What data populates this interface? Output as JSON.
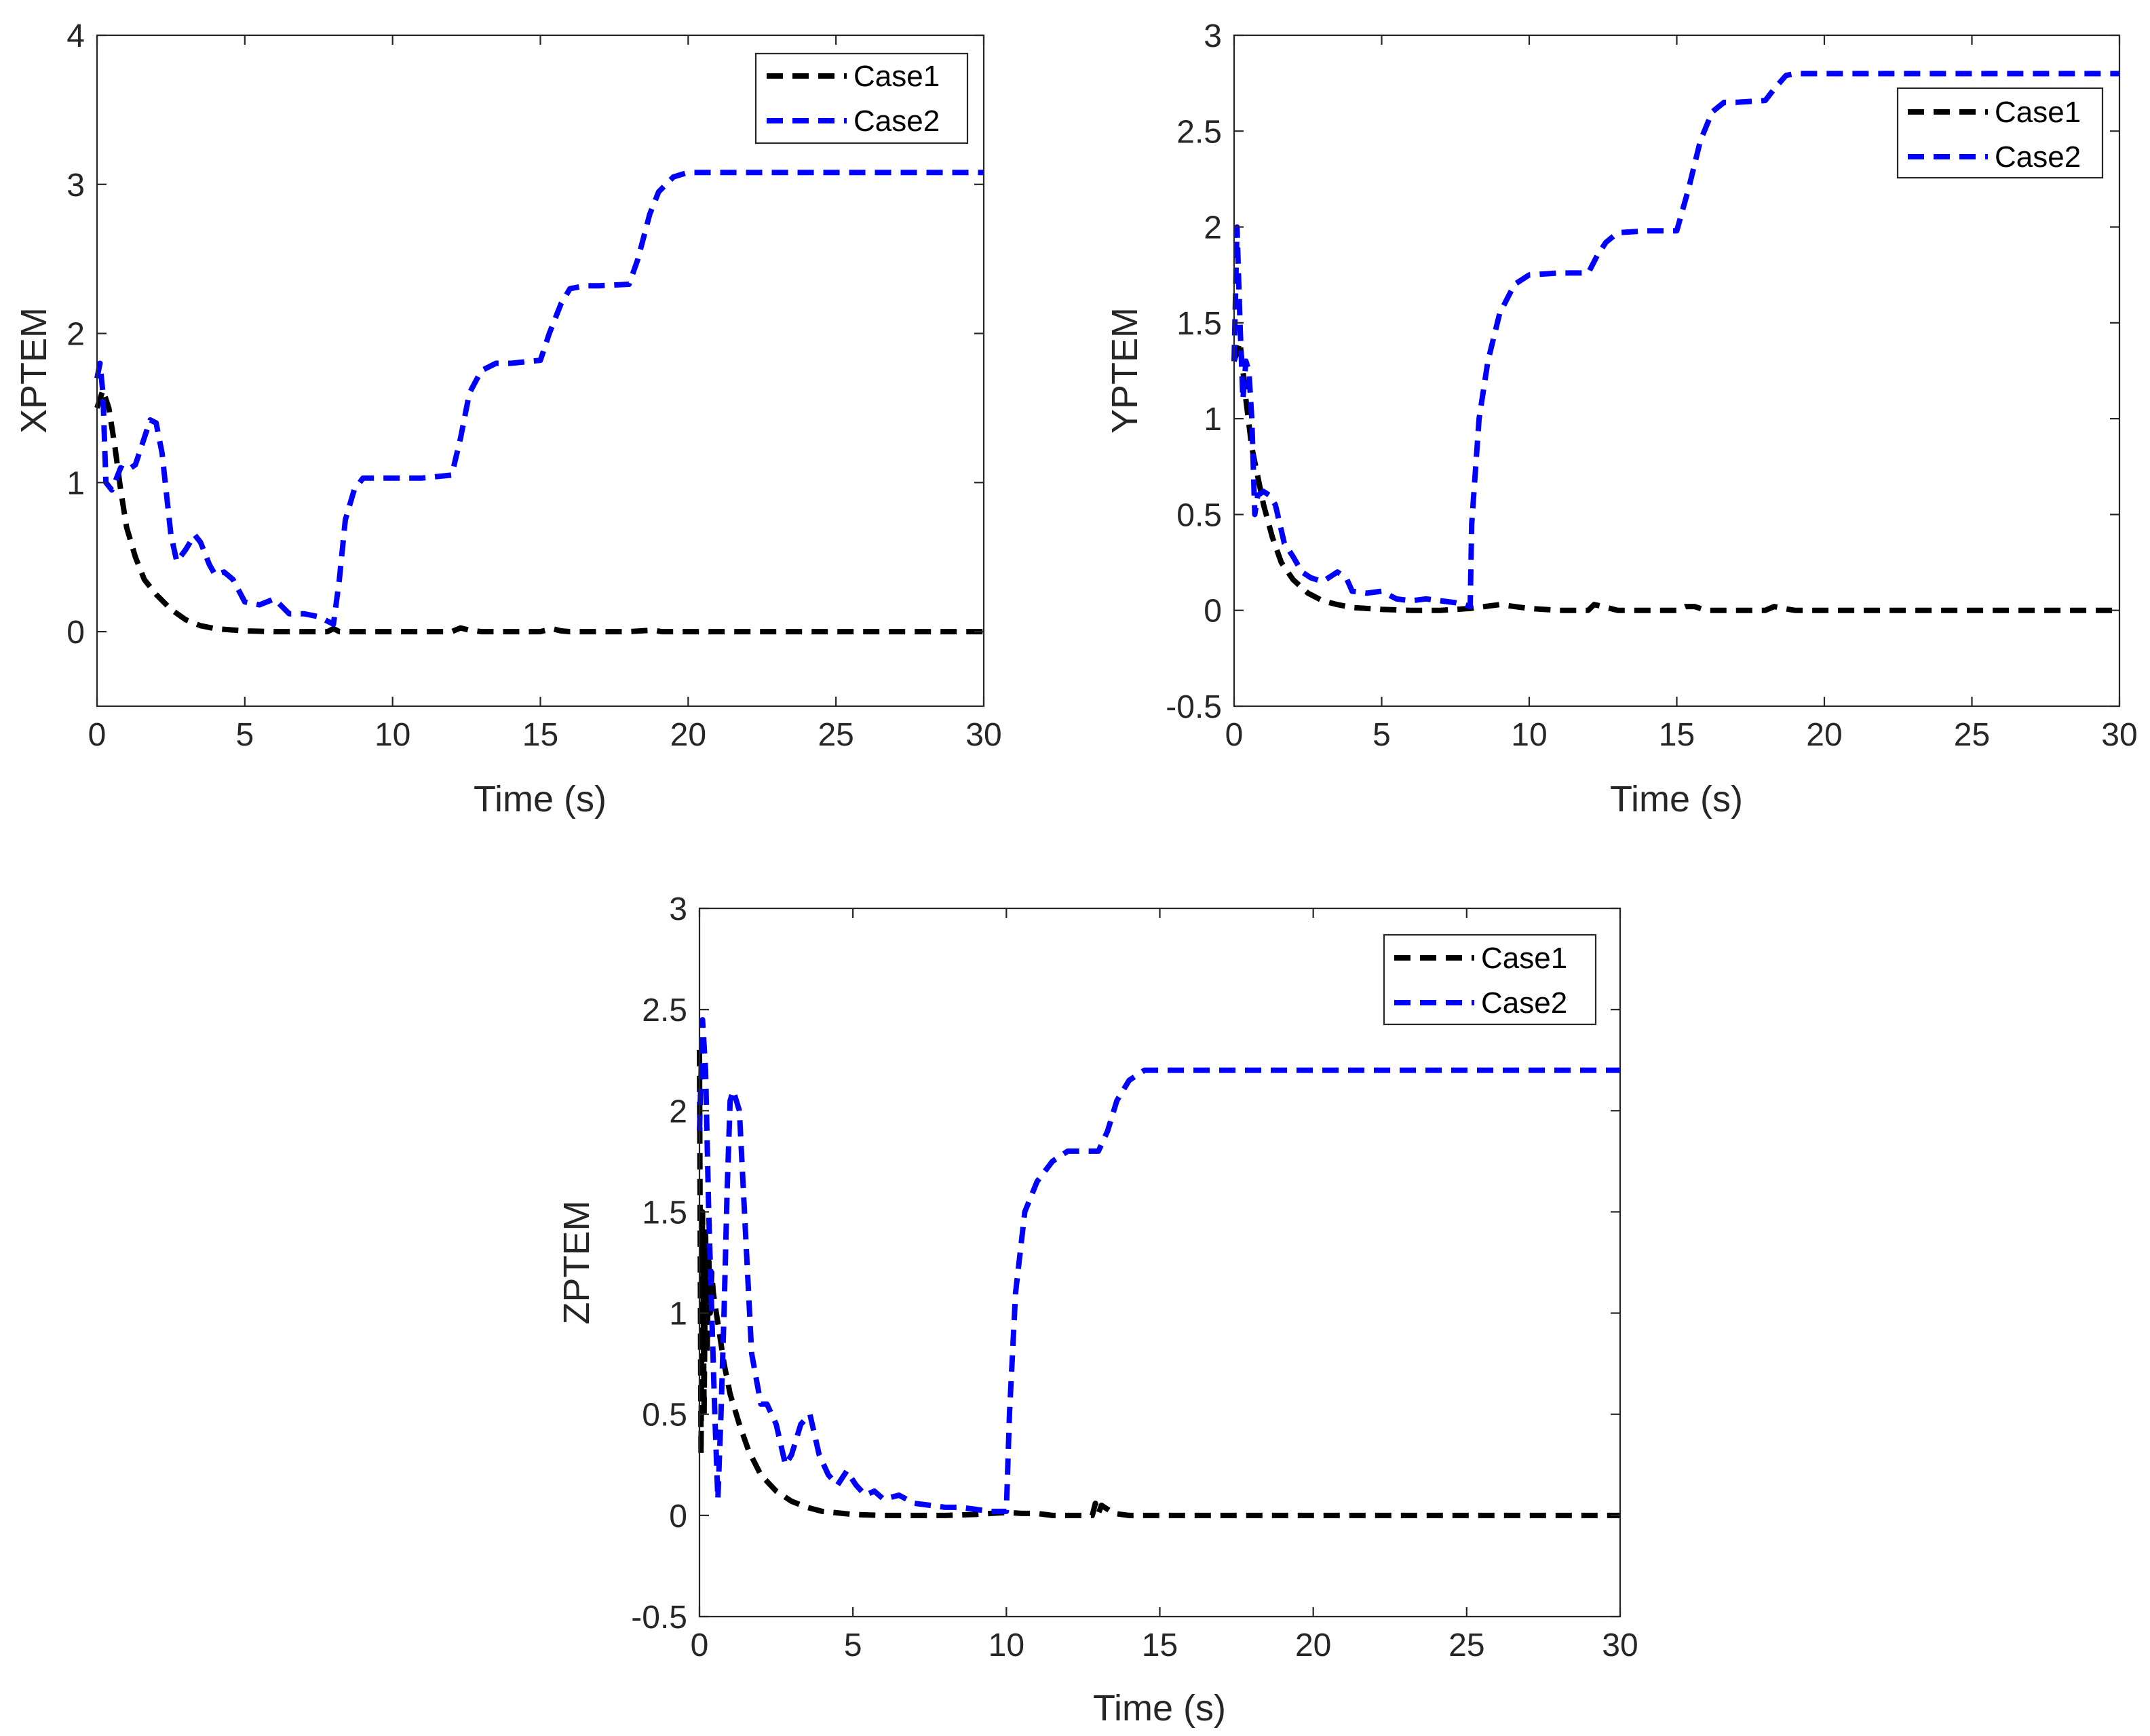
{
  "colors": {
    "case1": "#000000",
    "case2": "#0000ff",
    "axis": "#262626"
  },
  "chart_data": [
    {
      "type": "line",
      "id": "xptem",
      "title": "",
      "xlabel": "Time (s)",
      "ylabel": "XPTEM",
      "xlim": [
        0,
        30
      ],
      "ylim": [
        -0.5,
        4
      ],
      "xticks": [
        0,
        5,
        10,
        15,
        20,
        25,
        30
      ],
      "yticks": [
        0,
        1,
        2,
        3,
        4
      ],
      "legend_position": "top-right",
      "legend": [
        "Case1",
        "Case2"
      ],
      "series": [
        {
          "name": "Case1",
          "color": "#000000",
          "x": [
            0,
            0.2,
            0.4,
            0.6,
            0.8,
            1,
            1.3,
            1.6,
            2,
            2.5,
            3,
            3.5,
            4,
            5,
            6,
            7,
            7.8,
            8,
            8.2,
            9,
            10,
            11,
            12,
            12.3,
            12.6,
            13,
            14,
            15,
            15.4,
            15.7,
            16,
            17,
            18,
            18.8,
            19.1,
            20,
            22,
            25,
            30
          ],
          "values": [
            1.5,
            1.62,
            1.5,
            1.25,
            0.95,
            0.7,
            0.5,
            0.35,
            0.25,
            0.15,
            0.08,
            0.04,
            0.02,
            0.005,
            0,
            0,
            0,
            0.02,
            0,
            0,
            0,
            0,
            0,
            0.025,
            0.01,
            0,
            0,
            0,
            0.02,
            0.005,
            0,
            0,
            0,
            0.01,
            0,
            0,
            0,
            0,
            0
          ]
        },
        {
          "name": "Case2",
          "color": "#0000ff",
          "x": [
            0,
            0.1,
            0.2,
            0.3,
            0.5,
            0.8,
            1,
            1.3,
            1.6,
            1.8,
            2,
            2.2,
            2.5,
            2.7,
            3,
            3.3,
            3.5,
            3.8,
            4,
            4.3,
            4.6,
            5,
            5.5,
            6,
            6.5,
            7,
            7.5,
            7.8,
            8,
            8.2,
            8.4,
            8.7,
            9,
            10,
            11,
            12,
            12.3,
            12.6,
            13,
            13.5,
            14,
            15,
            15.3,
            15.7,
            16,
            16.5,
            17,
            18,
            18.3,
            18.7,
            19,
            19.5,
            20,
            21,
            25,
            30
          ],
          "values": [
            1.7,
            1.8,
            1.6,
            1.0,
            0.95,
            1.1,
            1.08,
            1.12,
            1.3,
            1.42,
            1.4,
            1.2,
            0.65,
            0.47,
            0.55,
            0.65,
            0.6,
            0.45,
            0.38,
            0.4,
            0.35,
            0.2,
            0.18,
            0.22,
            0.12,
            0.12,
            0.1,
            0.07,
            0.05,
            0.35,
            0.75,
            0.95,
            1.03,
            1.03,
            1.03,
            1.05,
            1.3,
            1.6,
            1.75,
            1.8,
            1.8,
            1.82,
            2.0,
            2.2,
            2.3,
            2.32,
            2.32,
            2.33,
            2.5,
            2.8,
            2.95,
            3.05,
            3.08,
            3.08,
            3.08,
            3.08
          ]
        }
      ]
    },
    {
      "type": "line",
      "id": "yptem",
      "title": "",
      "xlabel": "Time (s)",
      "ylabel": "YPTEM",
      "xlim": [
        0,
        30
      ],
      "ylim": [
        -0.5,
        3
      ],
      "xticks": [
        0,
        5,
        10,
        15,
        20,
        25,
        30
      ],
      "yticks": [
        -0.5,
        0,
        0.5,
        1,
        1.5,
        2,
        2.5,
        3
      ],
      "legend_position": "top-right",
      "legend": [
        "Case1",
        "Case2"
      ],
      "series": [
        {
          "name": "Case1",
          "color": "#000000",
          "x": [
            0,
            0.2,
            0.4,
            0.6,
            0.8,
            1,
            1.3,
            1.6,
            2,
            2.5,
            3,
            3.5,
            4,
            5,
            6,
            7,
            8,
            9,
            10,
            11,
            12,
            12.2,
            12.5,
            13,
            14,
            15,
            15.3,
            15.6,
            16,
            17,
            18,
            18.3,
            18.6,
            19,
            20,
            25,
            30
          ],
          "values": [
            1.3,
            1.4,
            1.1,
            0.85,
            0.7,
            0.55,
            0.38,
            0.25,
            0.16,
            0.09,
            0.05,
            0.03,
            0.015,
            0.005,
            0,
            0,
            0.01,
            0.03,
            0.01,
            0,
            0,
            0.03,
            0.02,
            0,
            0,
            0,
            0.02,
            0.02,
            0,
            0,
            0,
            0.02,
            0.01,
            0,
            0,
            0,
            0
          ]
        },
        {
          "name": "Case2",
          "color": "#0000ff",
          "x": [
            0,
            0.1,
            0.2,
            0.3,
            0.4,
            0.5,
            0.6,
            0.7,
            0.8,
            1,
            1.2,
            1.4,
            1.7,
            2,
            2.3,
            2.6,
            3,
            3.5,
            3.8,
            4,
            4.5,
            5,
            5.5,
            6,
            6.5,
            7,
            7.5,
            7.8,
            8,
            8.05,
            8.3,
            8.6,
            9,
            9.5,
            10,
            11,
            12,
            12.3,
            12.6,
            13,
            14,
            15,
            15.4,
            15.8,
            16.2,
            16.6,
            17,
            18,
            18.3,
            18.7,
            19,
            20,
            30
          ],
          "values": [
            1.3,
            2.0,
            1.5,
            1.1,
            1.3,
            1.25,
            1.0,
            0.5,
            0.6,
            0.62,
            0.6,
            0.55,
            0.35,
            0.28,
            0.2,
            0.17,
            0.15,
            0.2,
            0.17,
            0.1,
            0.09,
            0.1,
            0.06,
            0.05,
            0.06,
            0.05,
            0.04,
            0.03,
            0.02,
            0.45,
            1.0,
            1.3,
            1.55,
            1.7,
            1.75,
            1.76,
            1.76,
            1.85,
            1.92,
            1.97,
            1.98,
            1.98,
            2.2,
            2.45,
            2.6,
            2.65,
            2.65,
            2.66,
            2.72,
            2.79,
            2.8,
            2.8,
            2.8
          ]
        }
      ]
    },
    {
      "type": "line",
      "id": "zptem",
      "title": "",
      "xlabel": "Time (s)",
      "ylabel": "ZPTEM",
      "xlim": [
        0,
        30
      ],
      "ylim": [
        -0.5,
        3
      ],
      "xticks": [
        0,
        5,
        10,
        15,
        20,
        25,
        30
      ],
      "yticks": [
        -0.5,
        0,
        0.5,
        1,
        1.5,
        2,
        2.5,
        3
      ],
      "legend_position": "top-right",
      "legend": [
        "Case1",
        "Case2"
      ],
      "series": [
        {
          "name": "Case1",
          "color": "#000000",
          "x": [
            0,
            0.05,
            0.1,
            0.15,
            0.2,
            0.25,
            0.3,
            0.35,
            0.4,
            0.45,
            0.5,
            0.6,
            0.7,
            0.8,
            1,
            1.3,
            1.6,
            2,
            2.5,
            3,
            3.5,
            4,
            5,
            6,
            7,
            8,
            9,
            9.5,
            10,
            10.5,
            11,
            11.5,
            12,
            12.8,
            12.9,
            13,
            13.1,
            13.5,
            14,
            20,
            30
          ],
          "values": [
            2.3,
            0.3,
            1.5,
            0.5,
            1.4,
            0.8,
            1.3,
            1.0,
            1.2,
            1.1,
            1.05,
            0.95,
            0.85,
            0.75,
            0.6,
            0.45,
            0.32,
            0.2,
            0.12,
            0.07,
            0.04,
            0.02,
            0.005,
            0,
            0,
            0,
            0.005,
            0.01,
            0.015,
            0.01,
            0.01,
            0,
            0,
            0,
            0.06,
            0.01,
            0.05,
            0.01,
            0,
            0,
            0
          ]
        },
        {
          "name": "Case2",
          "color": "#0000ff",
          "x": [
            0,
            0.1,
            0.2,
            0.3,
            0.4,
            0.5,
            0.6,
            0.7,
            0.8,
            0.9,
            1,
            1.1,
            1.3,
            1.5,
            1.7,
            2,
            2.2,
            2.5,
            2.8,
            3,
            3.3,
            3.6,
            3.9,
            4.2,
            4.5,
            4.8,
            5.1,
            5.4,
            5.7,
            6,
            6.5,
            7,
            7.5,
            8,
            8.5,
            9,
            9.5,
            10,
            10.1,
            10.3,
            10.6,
            11,
            11.5,
            12,
            12.5,
            13,
            13.3,
            13.6,
            14,
            14.5,
            15,
            20,
            30
          ],
          "values": [
            1.9,
            2.45,
            2.2,
            1.5,
            1.0,
            0.5,
            0.08,
            0.5,
            1.0,
            1.6,
            2.05,
            2.1,
            2.0,
            1.4,
            0.8,
            0.55,
            0.55,
            0.45,
            0.25,
            0.3,
            0.45,
            0.5,
            0.3,
            0.2,
            0.15,
            0.22,
            0.15,
            0.1,
            0.12,
            0.08,
            0.1,
            0.06,
            0.05,
            0.04,
            0.04,
            0.03,
            0.02,
            0.02,
            0.5,
            1.1,
            1.5,
            1.65,
            1.75,
            1.8,
            1.8,
            1.8,
            1.9,
            2.05,
            2.15,
            2.2,
            2.2,
            2.2,
            2.2
          ]
        }
      ]
    }
  ]
}
